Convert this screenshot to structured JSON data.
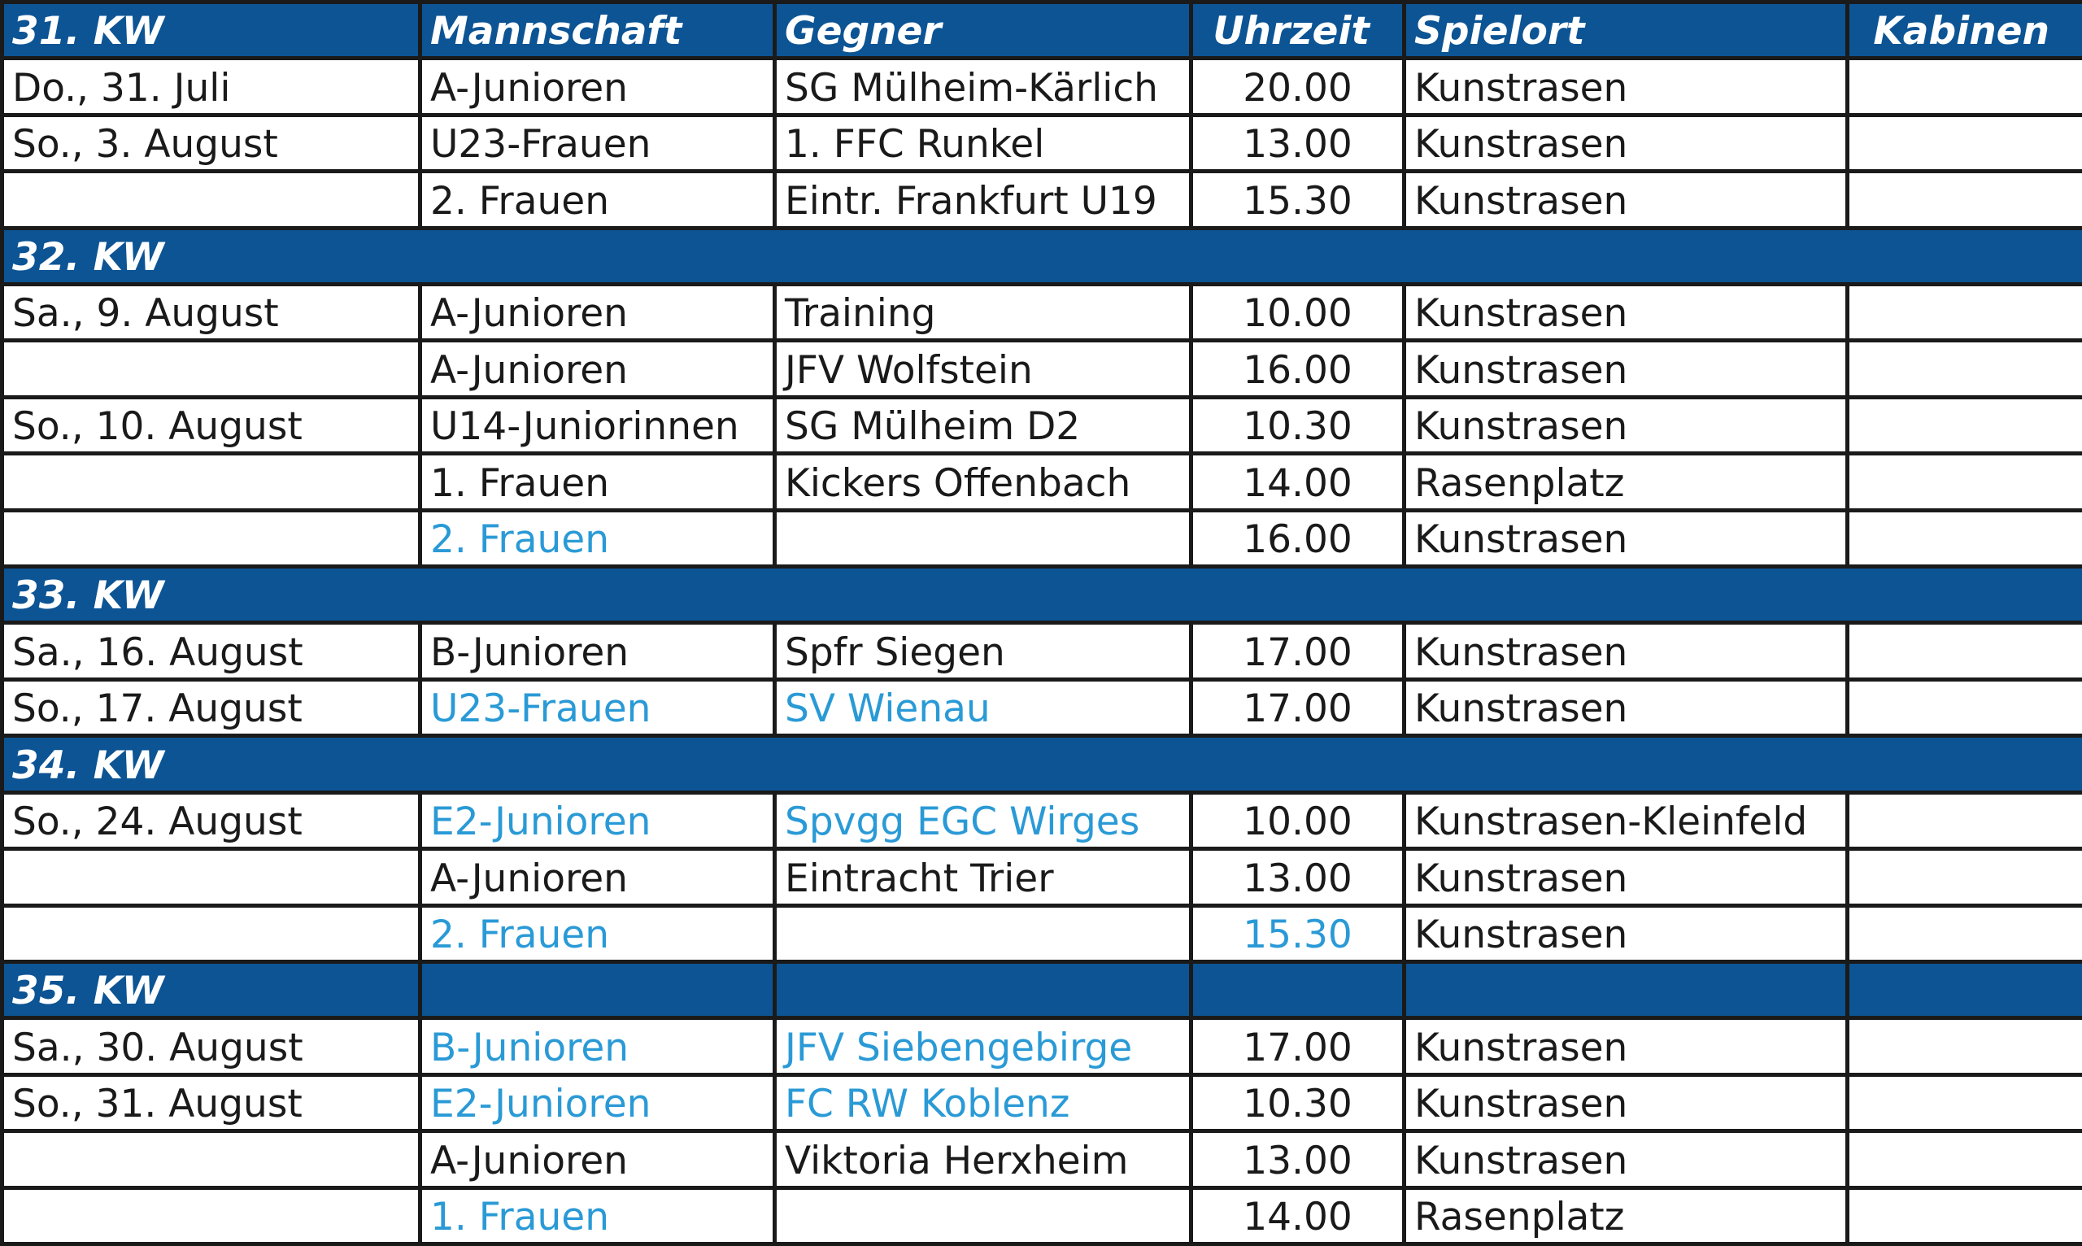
{
  "header": {
    "week": "31. KW",
    "team": "Mannschaft",
    "opponent": "Gegner",
    "time": "Uhrzeit",
    "venue": "Spielort",
    "cabins": "Kabinen"
  },
  "colors": {
    "header_bg": "#0c5494",
    "highlight": "#2a9ad6",
    "text": "#1a1a1a"
  },
  "rows": [
    {
      "date": "Do., 31. Juli",
      "team": "A-Junioren",
      "opponent": "SG Mülheim-Kärlich",
      "time": "20.00",
      "venue": "Kunstrasen",
      "cabins": ""
    },
    {
      "date": "So., 3. August",
      "team": "U23-Frauen",
      "opponent": "1. FFC Runkel",
      "time": "13.00",
      "venue": "Kunstrasen",
      "cabins": ""
    },
    {
      "date": "",
      "team": "2. Frauen",
      "opponent": "Eintr. Frankfurt U19",
      "time": "15.30",
      "venue": "Kunstrasen",
      "cabins": ""
    },
    {
      "week": "32. KW"
    },
    {
      "date": "Sa., 9. August",
      "team": "A-Junioren",
      "opponent": "Training",
      "time": "10.00",
      "venue": "Kunstrasen",
      "cabins": ""
    },
    {
      "date": "",
      "team": "A-Junioren",
      "opponent": "JFV Wolfstein",
      "time": "16.00",
      "venue": "Kunstrasen",
      "cabins": ""
    },
    {
      "date": "So., 10. August",
      "team": "U14-Juniorinnen",
      "opponent": "SG Mülheim D2",
      "time": "10.30",
      "venue": "Kunstrasen",
      "cabins": ""
    },
    {
      "date": "",
      "team": "1. Frauen",
      "opponent": "Kickers Offenbach",
      "time": "14.00",
      "venue": "Rasenplatz",
      "cabins": ""
    },
    {
      "date": "",
      "team": "2. Frauen",
      "opponent": "",
      "time": "16.00",
      "venue": "Kunstrasen",
      "cabins": "",
      "hl": [
        "team"
      ]
    },
    {
      "week": "33. KW"
    },
    {
      "date": "Sa., 16. August",
      "team": "B-Junioren",
      "opponent": "Spfr Siegen",
      "time": "17.00",
      "venue": "Kunstrasen",
      "cabins": ""
    },
    {
      "date": "So., 17. August",
      "team": "U23-Frauen",
      "opponent": "SV Wienau",
      "time": "17.00",
      "venue": "Kunstrasen",
      "cabins": "",
      "hl": [
        "team",
        "opponent"
      ]
    },
    {
      "week": "34. KW"
    },
    {
      "date": "So., 24. August",
      "team": "E2-Junioren",
      "opponent": "Spvgg EGC Wirges",
      "time": "10.00",
      "venue": "Kunstrasen-Kleinfeld",
      "cabins": "",
      "hl": [
        "team",
        "opponent"
      ]
    },
    {
      "date": "",
      "team": "A-Junioren",
      "opponent": "Eintracht Trier",
      "time": "13.00",
      "venue": "Kunstrasen",
      "cabins": ""
    },
    {
      "date": "",
      "team": "2. Frauen",
      "opponent": "",
      "time": "15.30",
      "venue": "Kunstrasen",
      "cabins": "",
      "hl": [
        "team",
        "time"
      ]
    },
    {
      "week": "35. KW",
      "grid": true
    },
    {
      "date": "Sa., 30. August",
      "team": "B-Junioren",
      "opponent": "JFV Siebengebirge",
      "time": "17.00",
      "venue": "Kunstrasen",
      "cabins": "",
      "hl": [
        "team",
        "opponent"
      ]
    },
    {
      "date": "So., 31. August",
      "team": "E2-Junioren",
      "opponent": "FC RW Koblenz",
      "time": "10.30",
      "venue": "Kunstrasen",
      "cabins": "",
      "hl": [
        "team",
        "opponent"
      ]
    },
    {
      "date": "",
      "team": "A-Junioren",
      "opponent": "Viktoria Herxheim",
      "time": "13.00",
      "venue": "Kunstrasen",
      "cabins": ""
    },
    {
      "date": "",
      "team": "1. Frauen",
      "opponent": "",
      "time": "14.00",
      "venue": "Rasenplatz",
      "cabins": "",
      "hl": [
        "team"
      ]
    }
  ]
}
